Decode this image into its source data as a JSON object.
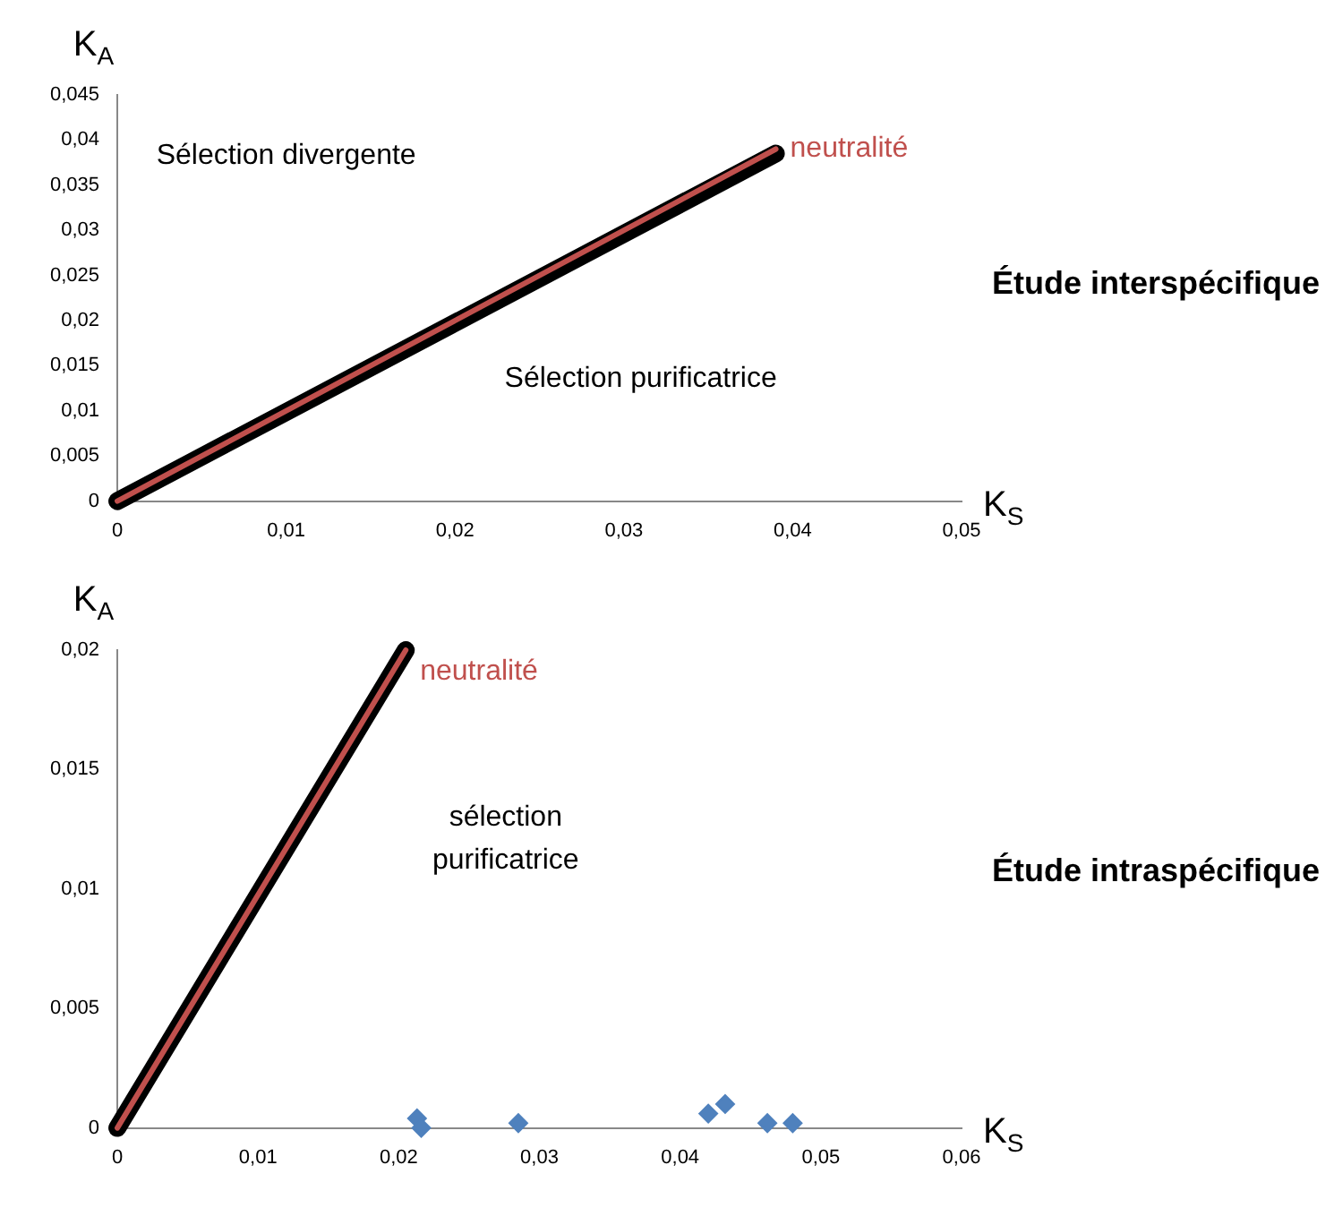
{
  "chart_data": [
    {
      "type": "line",
      "title": "Étude interspécifique",
      "xlabel": "K$_{S}$",
      "ylabel": "K$_{A}$",
      "annotations": [
        "Sélection divergente",
        "Sélection purificatrice"
      ],
      "series": [
        {
          "color": "#000000",
          "x": [
            0,
            0.039
          ],
          "values": [
            0,
            0.0385
          ],
          "marker": "none"
        },
        {
          "name": "neutralité",
          "color": "#c0504d",
          "x": [
            0,
            0.039
          ],
          "values": [
            0,
            0.039
          ],
          "marker": "none"
        }
      ],
      "xlim": [
        0,
        0.05
      ],
      "xticks": [
        0,
        {
          "value": 0.01,
          "label": "0,01"
        },
        {
          "value": 0.02,
          "label": "0,02"
        },
        {
          "value": 0.03,
          "label": "0,03"
        },
        {
          "value": 0.04,
          "label": "0,04"
        },
        {
          "value": 0.05,
          "label": "0,05"
        }
      ],
      "ylim": [
        0,
        0.045
      ],
      "yticks": [
        0,
        {
          "value": 0.005,
          "label": "0,005"
        },
        {
          "value": 0.01,
          "label": "0,01"
        },
        {
          "value": 0.015,
          "label": "0,015"
        },
        {
          "value": 0.02,
          "label": "0,02"
        },
        {
          "value": 0.025,
          "label": "0,025"
        },
        {
          "value": 0.03,
          "label": "0,03"
        },
        {
          "value": 0.035,
          "label": "0,035"
        },
        {
          "value": 0.04,
          "label": "0,04"
        },
        {
          "value": 0.045,
          "label": "0,045"
        }
      ],
      "grid": false,
      "legend": false
    },
    {
      "type": "scatter",
      "title": "Étude intraspécifique",
      "xlabel": "K$_{S}$",
      "ylabel": "K$_{A}$",
      "annotations": [
        "sélection purificatrice"
      ],
      "series": [
        {
          "type": "line",
          "color": "#000000",
          "x": [
            0,
            0.0205
          ],
          "values": [
            0,
            0.02
          ],
          "marker": "none"
        },
        {
          "type": "line",
          "name": "neutralité",
          "color": "#c0504d",
          "x": [
            0,
            0.0205
          ],
          "values": [
            0,
            0.02
          ],
          "marker": "none"
        },
        {
          "color": "#4f81bd",
          "marker": "diamond",
          "x": [
            0.0213,
            0.0216,
            0.0285,
            0.042,
            0.0432,
            0.0462,
            0.048
          ],
          "values": [
            0.0004,
            0,
            0.0002,
            0.0006,
            0.001,
            0.0002,
            0.0002
          ]
        }
      ],
      "xlim": [
        0,
        0.06
      ],
      "xticks": [
        0,
        {
          "value": 0.01,
          "label": "0,01"
        },
        {
          "value": 0.02,
          "label": "0,02"
        },
        {
          "value": 0.03,
          "label": "0,03"
        },
        {
          "value": 0.04,
          "label": "0,04"
        },
        {
          "value": 0.05,
          "label": "0,05"
        },
        {
          "value": 0.06,
          "label": "0,06"
        }
      ],
      "ylim": [
        0,
        0.02
      ],
      "yticks": [
        0,
        {
          "value": 0.005,
          "label": "0,005"
        },
        {
          "value": 0.01,
          "label": "0,01"
        },
        {
          "value": 0.015,
          "label": "0,015"
        },
        {
          "value": 0.02,
          "label": "0,02"
        }
      ],
      "grid": false,
      "legend": false
    }
  ]
}
